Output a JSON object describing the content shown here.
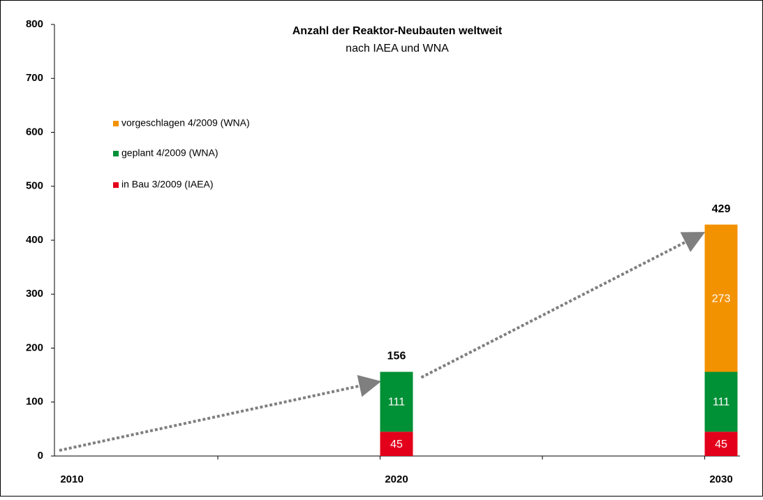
{
  "chart_data": {
    "type": "stacked_bar",
    "title": "Anzahl der Reaktor-Neubauten weltweit",
    "subtitle": "nach IAEA und WNA",
    "categories": [
      "2010",
      null,
      "2020",
      null,
      "2030"
    ],
    "series": [
      {
        "name": "in Bau 3/2009 (IAEA)",
        "color": "#e3001b",
        "values": [
          null,
          null,
          45,
          null,
          45
        ]
      },
      {
        "name": "geplant 4/2009 (WNA)",
        "color": "#009036",
        "values": [
          null,
          null,
          111,
          null,
          111
        ]
      },
      {
        "name": "vorgeschlagen 4/2009 (WNA)",
        "color": "#f39200",
        "values": [
          null,
          null,
          null,
          null,
          273
        ]
      }
    ],
    "totals": [
      null,
      null,
      156,
      null,
      429
    ],
    "ylim": [
      0,
      800
    ],
    "yticks": [
      0,
      100,
      200,
      300,
      400,
      500,
      600,
      700,
      800
    ],
    "grid": false,
    "legend": "upper left"
  }
}
